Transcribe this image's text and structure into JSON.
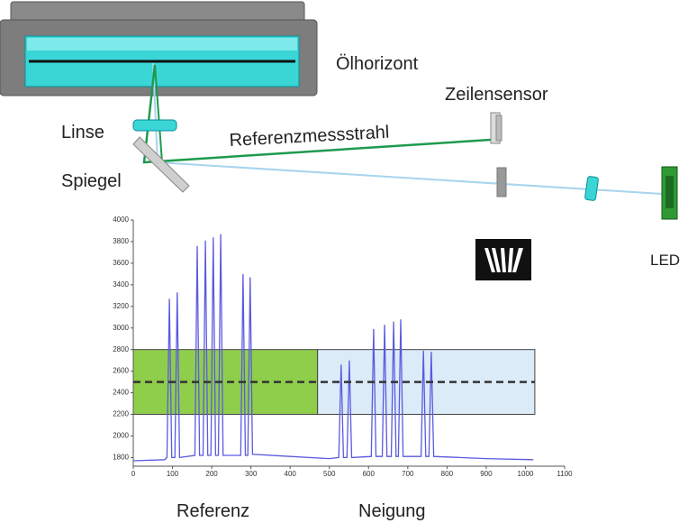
{
  "labels": {
    "oil_horizon": "Ölhorizont",
    "line_sensor": "Zeilensensor",
    "lens": "Linse",
    "reference_beam": "Referenzmessstrahl",
    "mirror": "Spiegel",
    "led": "LED",
    "reference": "Referenz",
    "tilt": "Neigung"
  },
  "chart_data": {
    "type": "line",
    "color": "#5a5ae0",
    "xlim": [
      0,
      1100
    ],
    "ylim": [
      1720,
      4000
    ],
    "xticks": [
      0,
      100,
      200,
      300,
      400,
      500,
      600,
      700,
      800,
      900,
      1000,
      1100
    ],
    "yticks": [
      1800,
      2000,
      2200,
      2400,
      2600,
      2800,
      3000,
      3200,
      3400,
      3600,
      3800,
      4000
    ],
    "regions": [
      {
        "x": [
          0,
          470
        ],
        "y": [
          2200,
          2800
        ],
        "color": "#8fce4a"
      },
      {
        "x": [
          470,
          1024
        ],
        "y": [
          2200,
          2800
        ],
        "color": "#dcebf8"
      }
    ],
    "threshold": 2500,
    "x": [
      0,
      80,
      86,
      92,
      98,
      106,
      112,
      118,
      157,
      163,
      169,
      178,
      184,
      190,
      198,
      204,
      210,
      217,
      223,
      229,
      274,
      280,
      286,
      292,
      298,
      304,
      400,
      500,
      524,
      530,
      536,
      545,
      551,
      557,
      607,
      613,
      619,
      635,
      641,
      647,
      658,
      664,
      670,
      676,
      682,
      688,
      734,
      740,
      746,
      754,
      760,
      766,
      900,
      1020
    ],
    "values": [
      1770,
      1780,
      1800,
      3270,
      1800,
      1800,
      3330,
      1800,
      1820,
      3760,
      1820,
      1820,
      3810,
      1820,
      1820,
      3840,
      1820,
      1820,
      3870,
      1820,
      1820,
      3500,
      1820,
      1820,
      3470,
      1830,
      1810,
      1790,
      1800,
      2660,
      1800,
      1800,
      2700,
      1800,
      1810,
      2990,
      1810,
      1810,
      3030,
      1810,
      1810,
      3060,
      1810,
      1810,
      3080,
      1810,
      1810,
      2790,
      1810,
      1810,
      2780,
      1810,
      1790,
      1780
    ]
  }
}
